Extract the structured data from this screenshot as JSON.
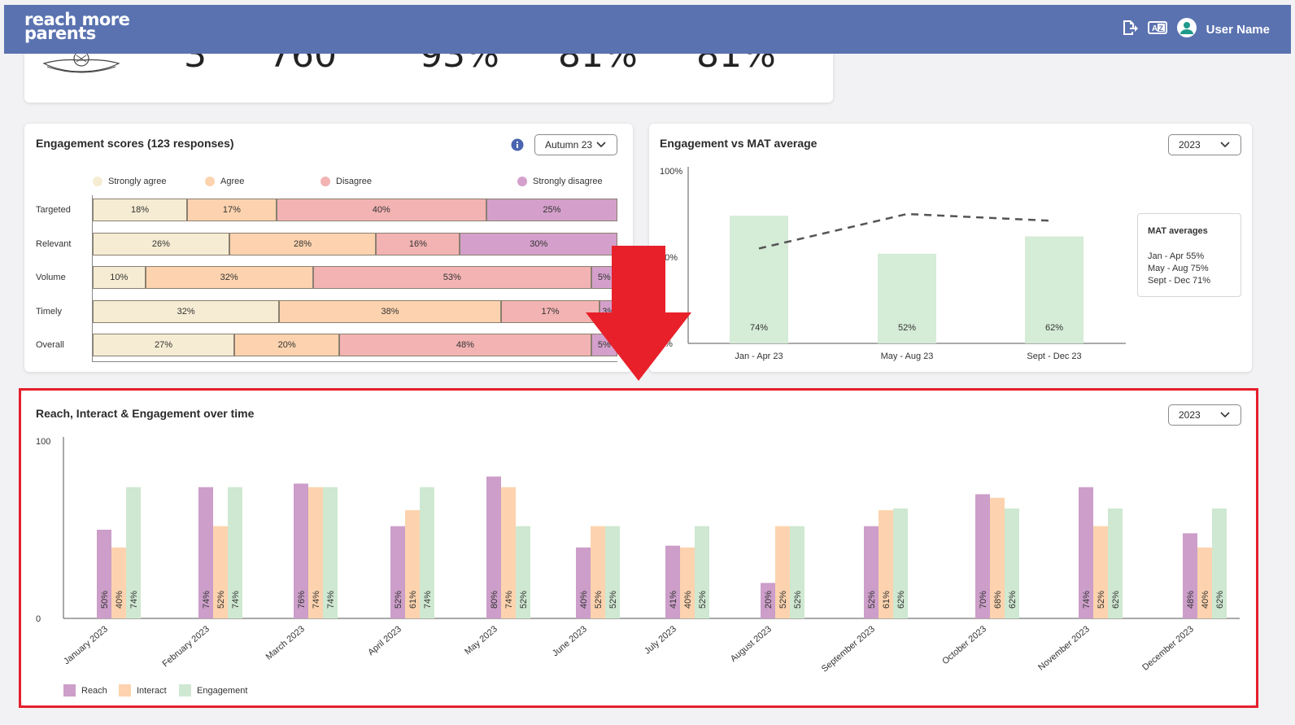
{
  "header": {
    "logo_line1": "reach more",
    "logo_line2": "parents",
    "user_name": "User Name",
    "icons": [
      "logout-icon",
      "translate-icon",
      "user-avatar-icon"
    ]
  },
  "stats": {
    "values": [
      "3",
      "760",
      "93%",
      "81%",
      "81%"
    ]
  },
  "engagement_scores": {
    "title": "Engagement scores (123 responses)",
    "term_select": "Autumn 23",
    "legend": [
      "Strongly agree",
      "Agree",
      "Disagree",
      "Strongly disagree"
    ],
    "colors": [
      "#f6ecd3",
      "#fcd3ae",
      "#f3b3b3",
      "#d4a0cb"
    ],
    "rows": [
      {
        "label": "Targeted",
        "values": [
          18,
          17,
          40,
          25
        ],
        "texts": [
          "18%",
          "17%",
          "40%",
          "25%"
        ]
      },
      {
        "label": "Relevant",
        "values": [
          26,
          28,
          16,
          30
        ],
        "texts": [
          "26%",
          "28%",
          "16%",
          "30%"
        ]
      },
      {
        "label": "Volume",
        "values": [
          10,
          32,
          53,
          5
        ],
        "texts": [
          "10%",
          "32%",
          "53%",
          "5%"
        ]
      },
      {
        "label": "Timely",
        "values": [
          32,
          38,
          17,
          3
        ],
        "texts": [
          "32%",
          "38%",
          "17%",
          "3%"
        ]
      },
      {
        "label": "Overall",
        "values": [
          27,
          20,
          48,
          5
        ],
        "texts": [
          "27%",
          "20%",
          "48%",
          "5%"
        ]
      }
    ]
  },
  "mat_chart": {
    "title": "Engagement vs MAT average",
    "year_select": "2023",
    "y_ticks": [
      "100%",
      "50%",
      "0%"
    ],
    "mat_box_title": "MAT averages",
    "mat_box_lines": [
      "Jan - Apr 55%",
      "May - Aug 75%",
      "Sept - Dec 71%"
    ]
  },
  "over_time": {
    "title": "Reach, Interact & Engagement over time",
    "year_select": "2023",
    "y_ticks": [
      "100",
      "0"
    ],
    "legend": [
      "Reach",
      "Interact",
      "Engagement"
    ]
  },
  "chart_data": [
    {
      "type": "bar",
      "title": "Engagement vs MAT average",
      "categories": [
        "Jan - Apr 23",
        "May - Aug 23",
        "Sept - Dec 23"
      ],
      "series": [
        {
          "values": [
            74,
            52,
            62
          ],
          "color": "#d5ecd6"
        },
        {
          "values": [
            55,
            75,
            71
          ],
          "style": "dashed-line",
          "color": "#555555"
        }
      ],
      "ylim": [
        0,
        100
      ]
    },
    {
      "type": "bar",
      "title": "Reach, Interact & Engagement over time",
      "categories": [
        "January 2023",
        "February 2023",
        "March 2023",
        "April 2023",
        "May 2023",
        "June 2023",
        "July 2023",
        "August 2023",
        "September 2023",
        "October 2023",
        "November 2023",
        "December 2023"
      ],
      "series": [
        {
          "name": "Reach",
          "values": [
            50,
            74,
            76,
            52,
            80,
            40,
            41,
            20,
            52,
            70,
            74,
            48
          ],
          "color": "#cc9ec9"
        },
        {
          "name": "Interact",
          "values": [
            40,
            52,
            74,
            61,
            74,
            52,
            40,
            52,
            61,
            68,
            52,
            40
          ],
          "color": "#fcd3ae"
        },
        {
          "name": "Engagement",
          "values": [
            74,
            74,
            74,
            74,
            52,
            52,
            52,
            52,
            62,
            62,
            62,
            62
          ],
          "color": "#cfe8d1"
        }
      ],
      "ylim": [
        0,
        100
      ],
      "legend": "bottom-left"
    }
  ]
}
